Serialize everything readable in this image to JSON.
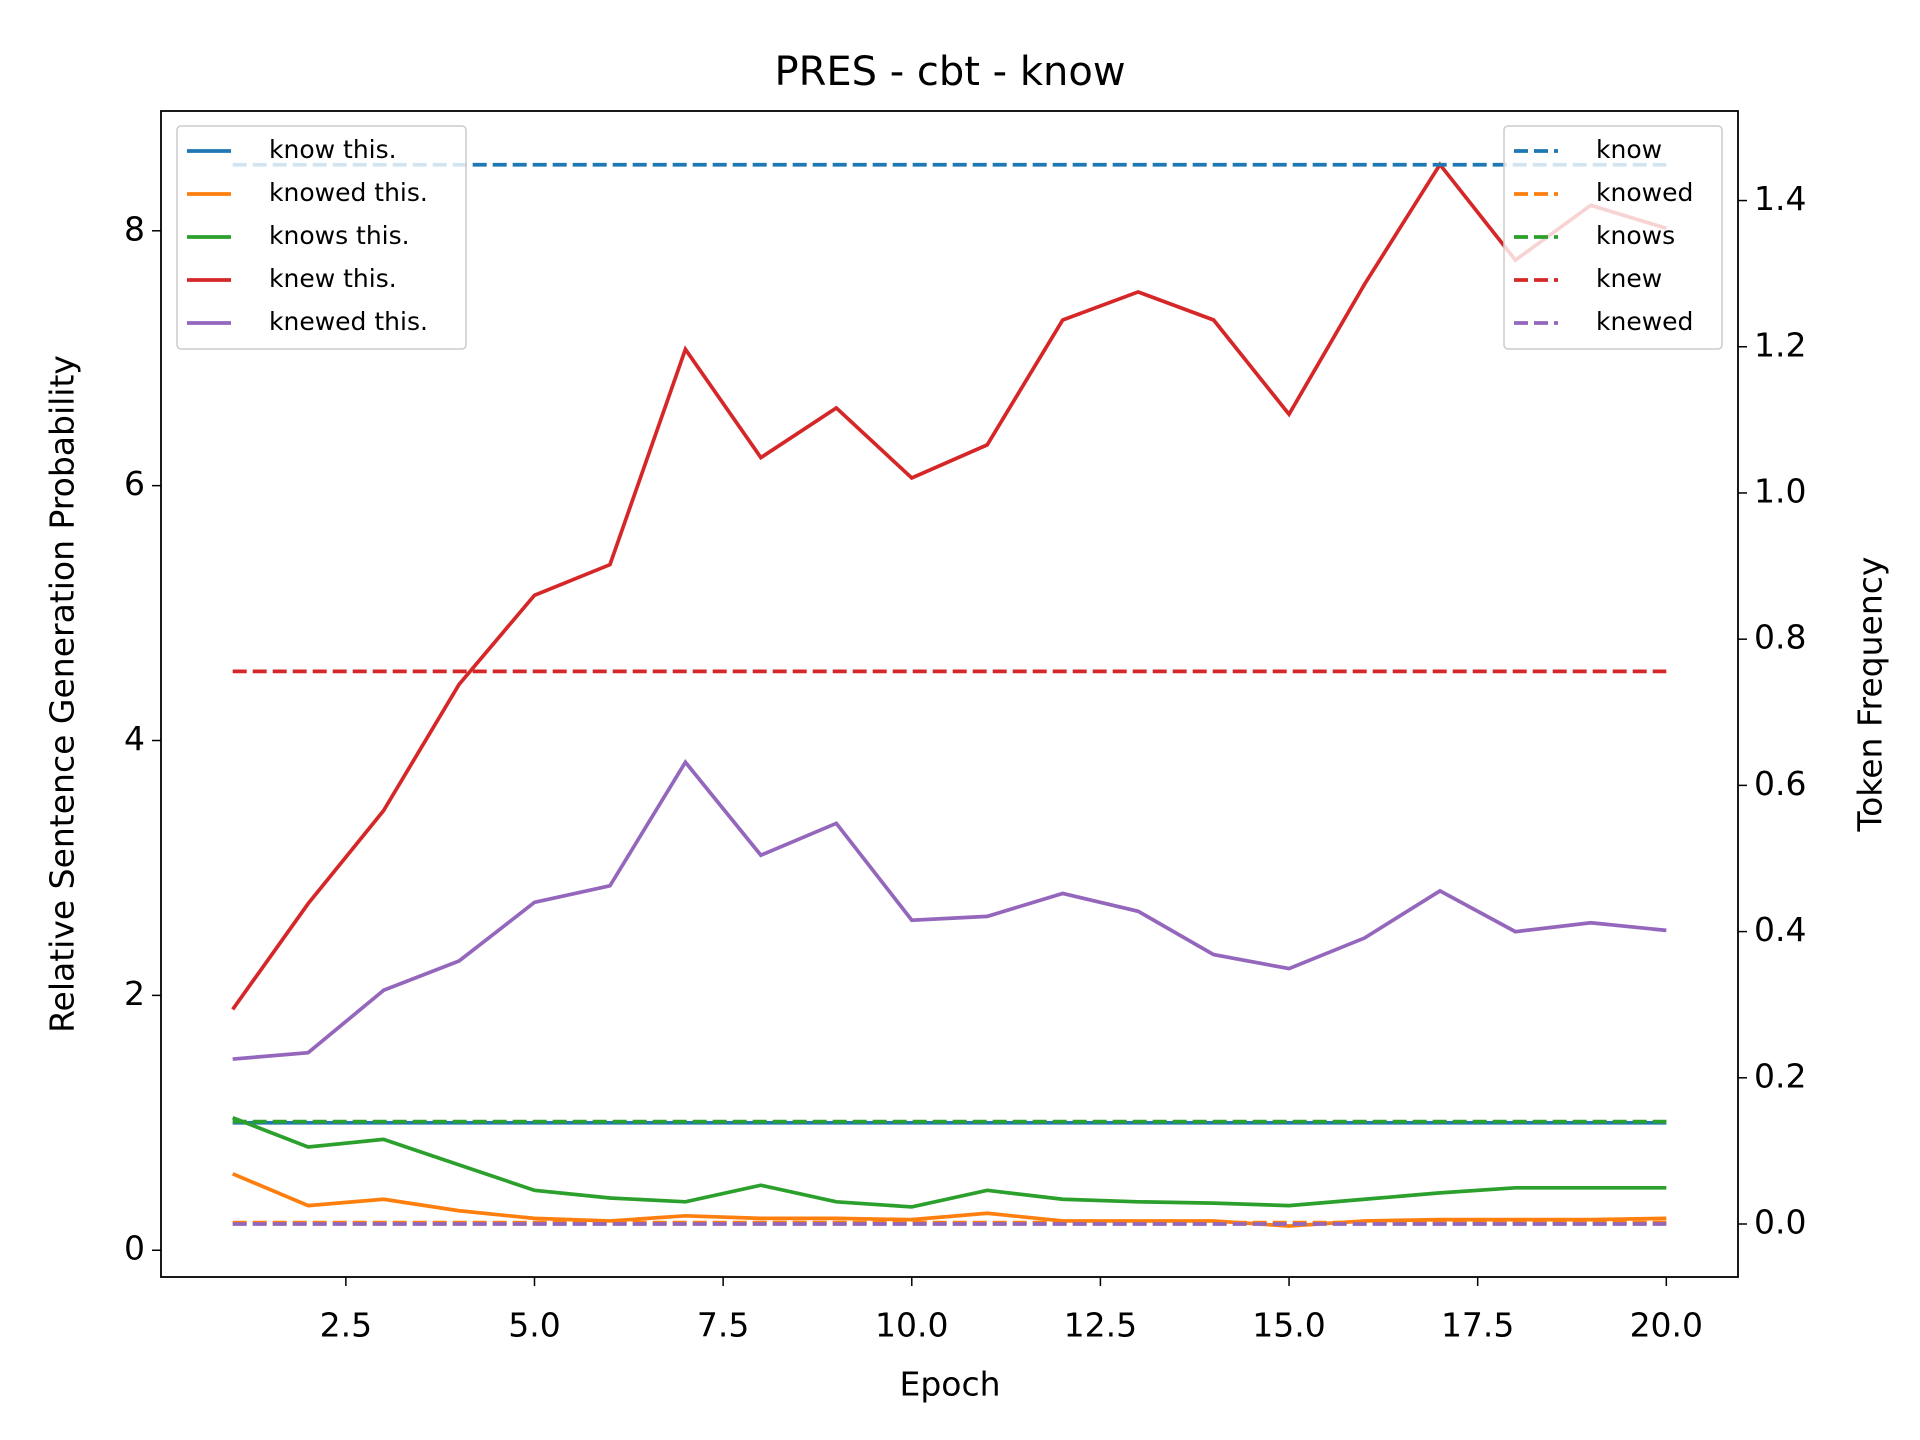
{
  "chart_data": {
    "type": "line",
    "title": "PRES - cbt - know",
    "x_label": "Epoch",
    "y_label": "Relative Sentence Generation Probability",
    "y2_label": "Token Frequency",
    "x": [
      1,
      2,
      3,
      4,
      5,
      6,
      7,
      8,
      9,
      10,
      11,
      12,
      13,
      14,
      15,
      16,
      17,
      18,
      19,
      20
    ],
    "xlim": [
      0.05,
      20.95
    ],
    "xticks": [
      2.5,
      {
        "value": 5.0,
        "label": "5.0"
      },
      7.5,
      {
        "value": 10.0,
        "label": "10.0"
      },
      12.5,
      {
        "value": 15.0,
        "label": "15.0"
      },
      17.5,
      {
        "value": 20.0,
        "label": "20.0"
      }
    ],
    "ylim": [
      -0.21,
      8.94
    ],
    "yticks": [
      0,
      2,
      4,
      6,
      8
    ],
    "y2lim": [
      -0.0725,
      1.5225
    ],
    "y2ticks": [
      {
        "value": 0.0,
        "label": "0.0"
      },
      0.2,
      0.4,
      0.6,
      0.8,
      {
        "value": 1.0,
        "label": "1.0"
      },
      1.2,
      1.4
    ],
    "legend": "upper left",
    "y2_legend": "upper right",
    "series": [
      {
        "name": "know this.",
        "color": "#1f77b4",
        "dash": false,
        "values": [
          1.0,
          1.0,
          1.0,
          1.0,
          1.0,
          1.0,
          1.0,
          1.0,
          1.0,
          1.0,
          1.0,
          1.0,
          1.0,
          1.0,
          1.0,
          1.0,
          1.0,
          1.0,
          1.0,
          1.0
        ]
      },
      {
        "name": "knowed this.",
        "color": "#ff7f0e",
        "dash": false,
        "values": [
          0.6,
          0.35,
          0.4,
          0.31,
          0.25,
          0.23,
          0.27,
          0.25,
          0.25,
          0.24,
          0.29,
          0.23,
          0.23,
          0.23,
          0.19,
          0.23,
          0.24,
          0.24,
          0.24,
          0.25
        ]
      },
      {
        "name": "knows this.",
        "color": "#2ca02c",
        "dash": false,
        "values": [
          1.04,
          0.81,
          0.87,
          0.67,
          0.47,
          0.41,
          0.38,
          0.51,
          0.38,
          0.34,
          0.47,
          0.4,
          0.38,
          0.37,
          0.35,
          0.4,
          0.45,
          0.49,
          0.49,
          0.49
        ]
      },
      {
        "name": "knew this.",
        "color": "#d62728",
        "dash": false,
        "values": [
          1.89,
          2.72,
          3.45,
          4.44,
          5.14,
          5.38,
          7.07,
          6.22,
          6.61,
          6.06,
          6.32,
          7.3,
          7.52,
          7.3,
          6.56,
          7.58,
          8.52,
          7.77,
          8.2,
          8.02
        ]
      },
      {
        "name": "knewed this.",
        "color": "#9467bd",
        "dash": false,
        "values": [
          1.5,
          1.55,
          2.04,
          2.27,
          2.73,
          2.86,
          3.83,
          3.1,
          3.35,
          2.59,
          2.62,
          2.8,
          2.66,
          2.32,
          2.21,
          2.45,
          2.82,
          2.5,
          2.57,
          2.51
        ]
      },
      {
        "name": "know",
        "color": "#1f77b4",
        "dash": true,
        "axis": "y2",
        "values": [
          1.449,
          1.449,
          1.449,
          1.449,
          1.449,
          1.449,
          1.449,
          1.449,
          1.449,
          1.449,
          1.449,
          1.449,
          1.449,
          1.449,
          1.449,
          1.449,
          1.449,
          1.449,
          1.449,
          1.449
        ]
      },
      {
        "name": "knowed",
        "color": "#ff7f0e",
        "dash": true,
        "axis": "y2",
        "values": [
          0.002,
          0.002,
          0.002,
          0.002,
          0.002,
          0.002,
          0.002,
          0.002,
          0.002,
          0.002,
          0.002,
          0.002,
          0.002,
          0.002,
          0.002,
          0.002,
          0.002,
          0.002,
          0.002,
          0.002
        ]
      },
      {
        "name": "knows",
        "color": "#2ca02c",
        "dash": true,
        "axis": "y2",
        "values": [
          0.14,
          0.14,
          0.14,
          0.14,
          0.14,
          0.14,
          0.14,
          0.14,
          0.14,
          0.14,
          0.14,
          0.14,
          0.14,
          0.14,
          0.14,
          0.14,
          0.14,
          0.14,
          0.14,
          0.14
        ]
      },
      {
        "name": "knew",
        "color": "#d62728",
        "dash": true,
        "axis": "y2",
        "values": [
          0.756,
          0.756,
          0.756,
          0.756,
          0.756,
          0.756,
          0.756,
          0.756,
          0.756,
          0.756,
          0.756,
          0.756,
          0.756,
          0.756,
          0.756,
          0.756,
          0.756,
          0.756,
          0.756,
          0.756
        ]
      },
      {
        "name": "knewed",
        "color": "#9467bd",
        "dash": true,
        "axis": "y2",
        "values": [
          0.0,
          0.0,
          0.0,
          0.0,
          0.0,
          0.0,
          0.0,
          0.0,
          0.0,
          0.0,
          0.0,
          0.0,
          0.0,
          0.0,
          0.0,
          0.0,
          0.0,
          0.0,
          0.0,
          0.0
        ]
      }
    ]
  }
}
